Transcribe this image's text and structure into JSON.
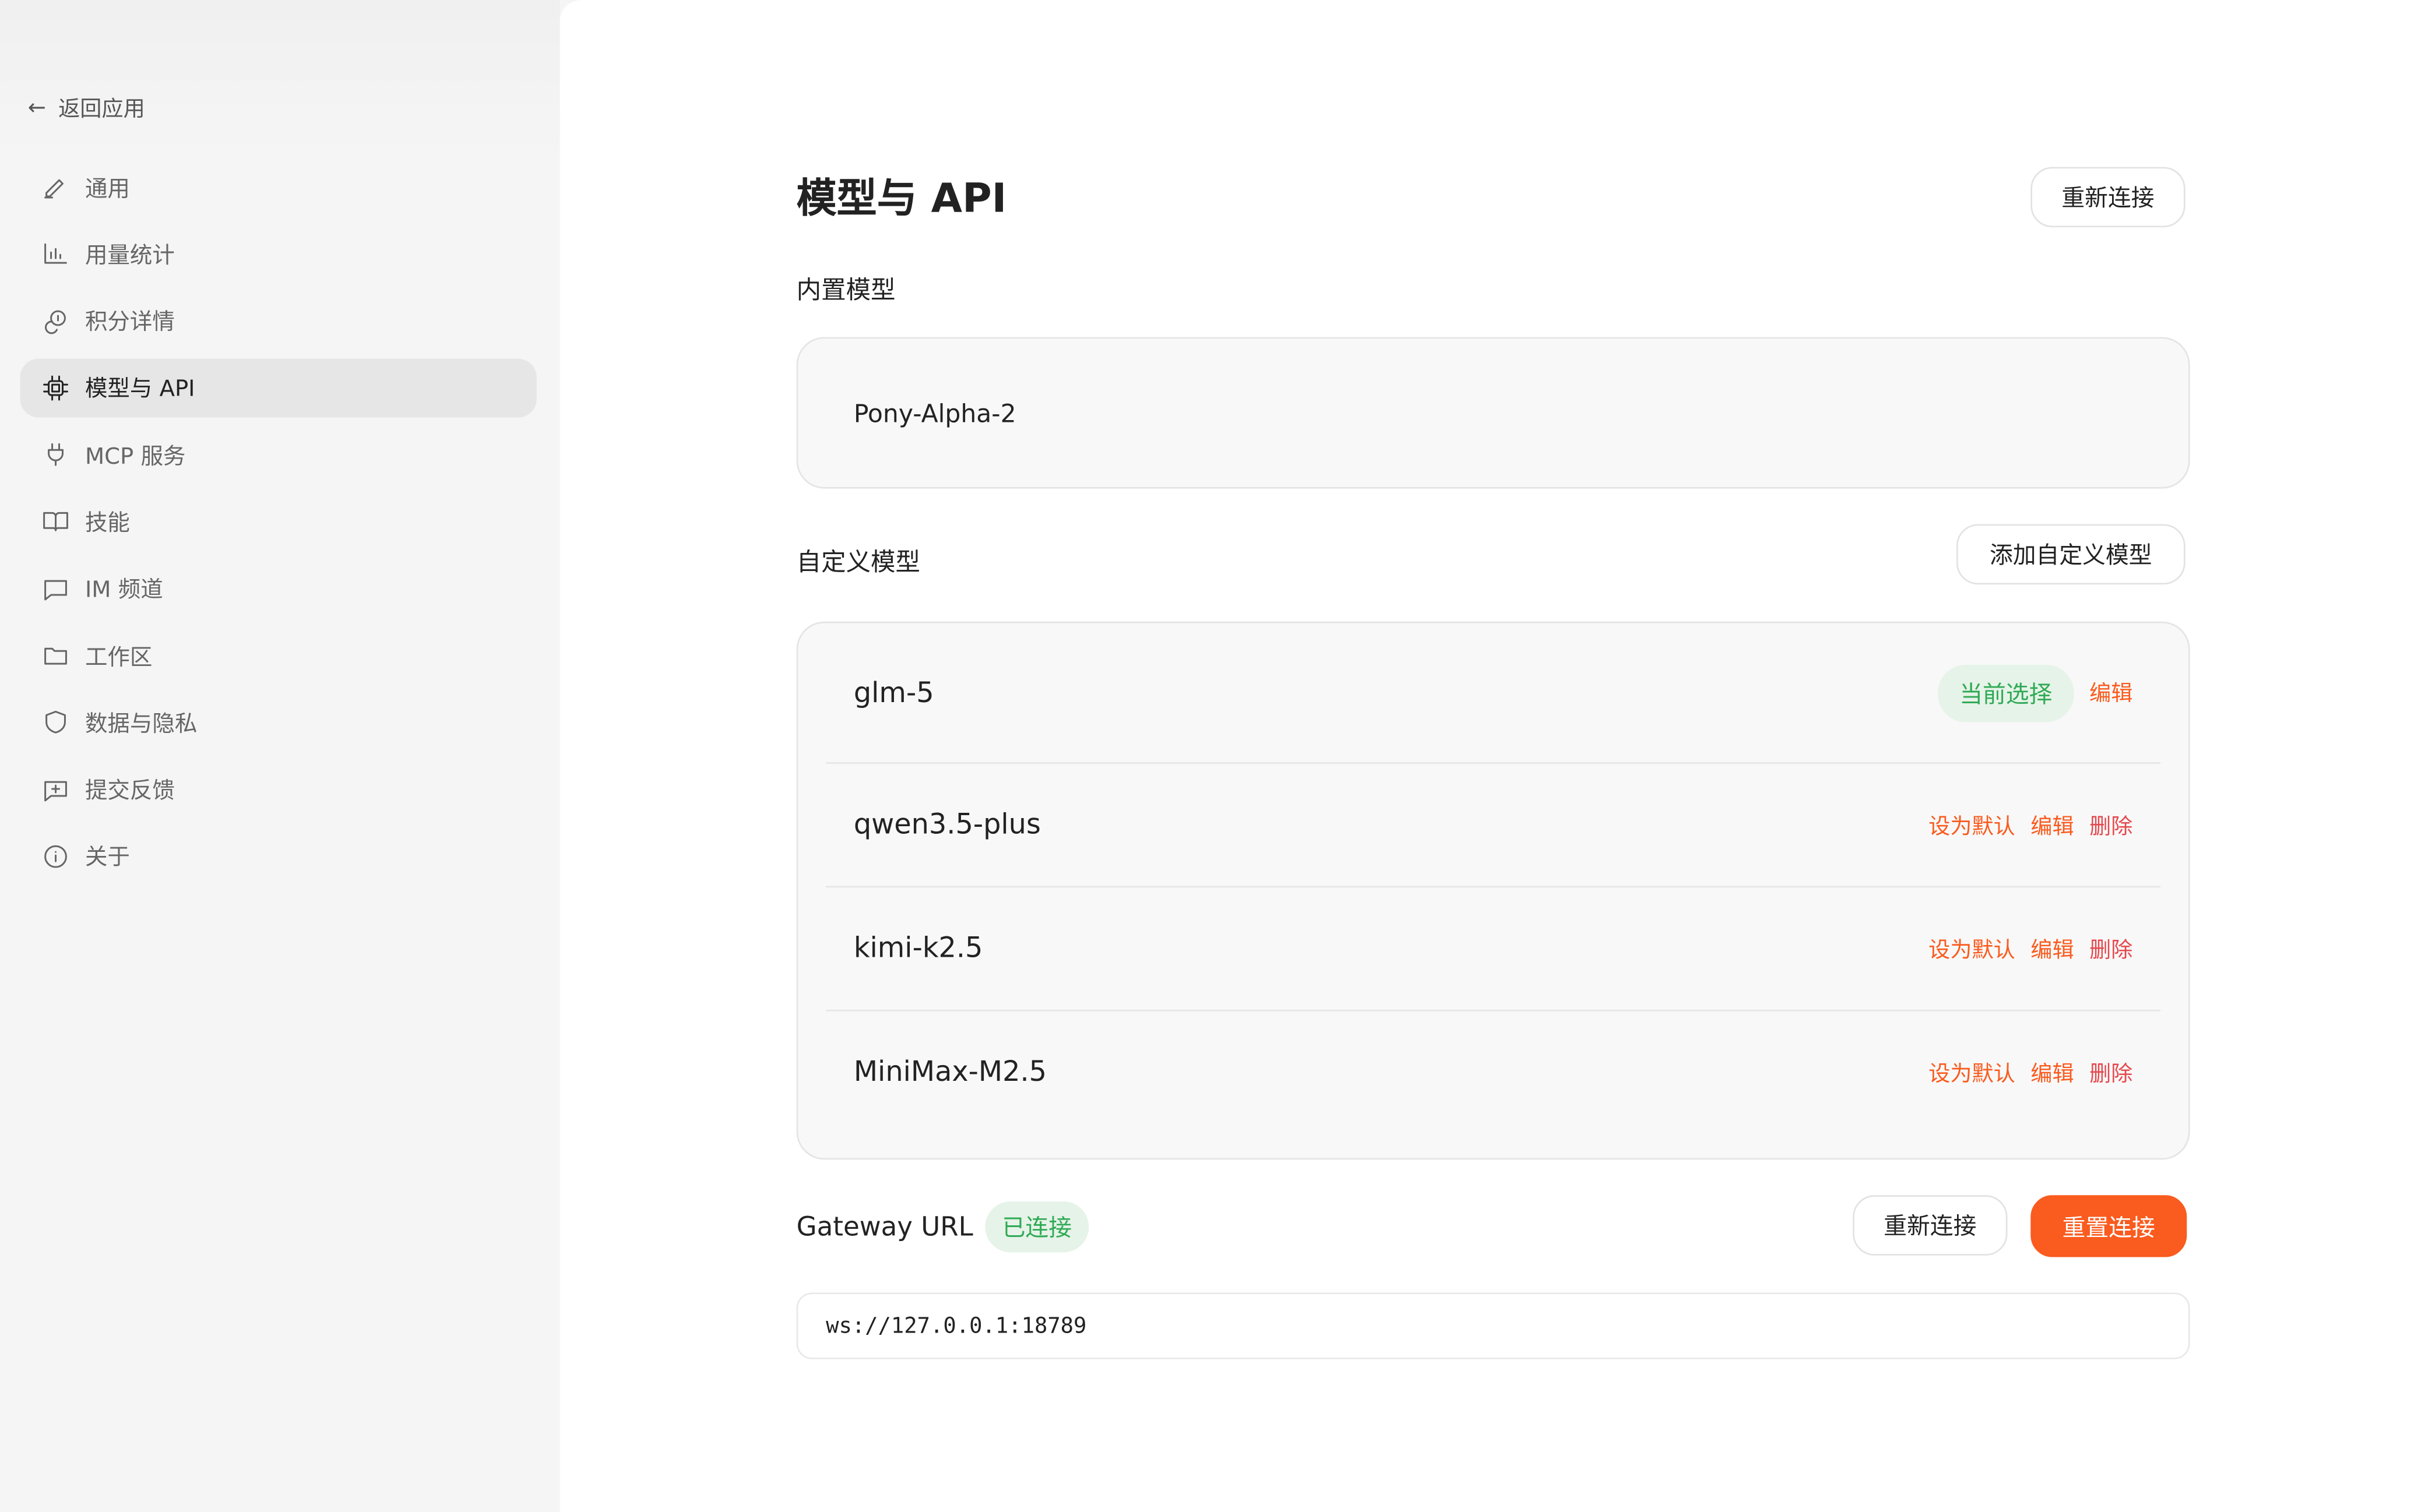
{
  "sidebar": {
    "back_label": "返回应用",
    "items": [
      {
        "label": "通用",
        "icon": "pencil-icon"
      },
      {
        "label": "用量统计",
        "icon": "bar-chart-icon"
      },
      {
        "label": "积分详情",
        "icon": "coins-icon"
      },
      {
        "label": "模型与 API",
        "icon": "cpu-icon",
        "active": true
      },
      {
        "label": "MCP 服务",
        "icon": "plug-icon"
      },
      {
        "label": "技能",
        "icon": "book-icon"
      },
      {
        "label": "IM 频道",
        "icon": "message-icon"
      },
      {
        "label": "工作区",
        "icon": "folder-icon"
      },
      {
        "label": "数据与隐私",
        "icon": "shield-icon"
      },
      {
        "label": "提交反馈",
        "icon": "feedback-icon"
      },
      {
        "label": "关于",
        "icon": "info-icon"
      }
    ]
  },
  "main": {
    "title": "模型与 API",
    "reconnect_top": "重新连接",
    "builtin": {
      "label": "内置模型",
      "model": "Pony-Alpha-2"
    },
    "custom": {
      "label": "自定义模型",
      "add_button": "添加自定义模型",
      "current_badge": "当前选择",
      "set_default": "设为默认",
      "edit": "编辑",
      "delete": "删除",
      "models": [
        {
          "name": "glm-5",
          "current": true
        },
        {
          "name": "qwen3.5-plus"
        },
        {
          "name": "kimi-k2.5"
        },
        {
          "name": "MiniMax-M2.5"
        }
      ]
    },
    "gateway": {
      "label": "Gateway URL",
      "status": "已连接",
      "reconnect": "重新连接",
      "reset": "重置连接",
      "url": "ws://127.0.0.1:18789"
    }
  },
  "colors": {
    "accent": "#fa5b1e",
    "success": "#2faa55",
    "delete": "#e5484d"
  }
}
